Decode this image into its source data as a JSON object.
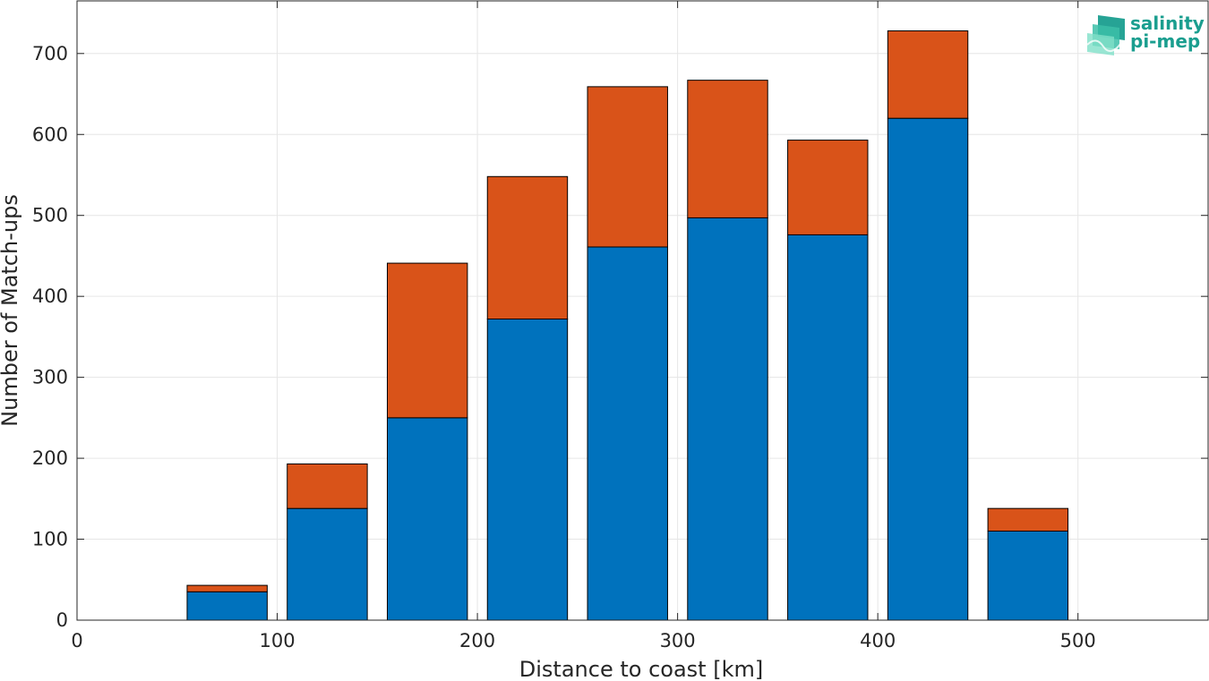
{
  "chart_data": {
    "type": "bar",
    "stacked": true,
    "xlabel": "Distance to coast [km]",
    "ylabel": "Number of Match-ups",
    "xlim": [
      0,
      565
    ],
    "ylim": [
      0,
      765
    ],
    "xticks": [
      0,
      100,
      200,
      300,
      400,
      500
    ],
    "yticks": [
      0,
      100,
      200,
      300,
      400,
      500,
      600,
      700
    ],
    "grid": true,
    "bar_width": 40,
    "x": [
      25,
      75,
      125,
      175,
      225,
      275,
      325,
      375,
      425,
      475,
      525
    ],
    "series": [
      {
        "color": "#0072bd",
        "values": [
          0,
          35,
          138,
          250,
          372,
          461,
          497,
          476,
          620,
          110,
          0
        ]
      },
      {
        "color": "#d95319",
        "values": [
          0,
          8,
          55,
          191,
          176,
          198,
          170,
          117,
          108,
          28,
          0
        ]
      }
    ]
  },
  "logo": {
    "line1": "salinity",
    "line2": "pi-mep",
    "color": "#1a9e8f"
  }
}
